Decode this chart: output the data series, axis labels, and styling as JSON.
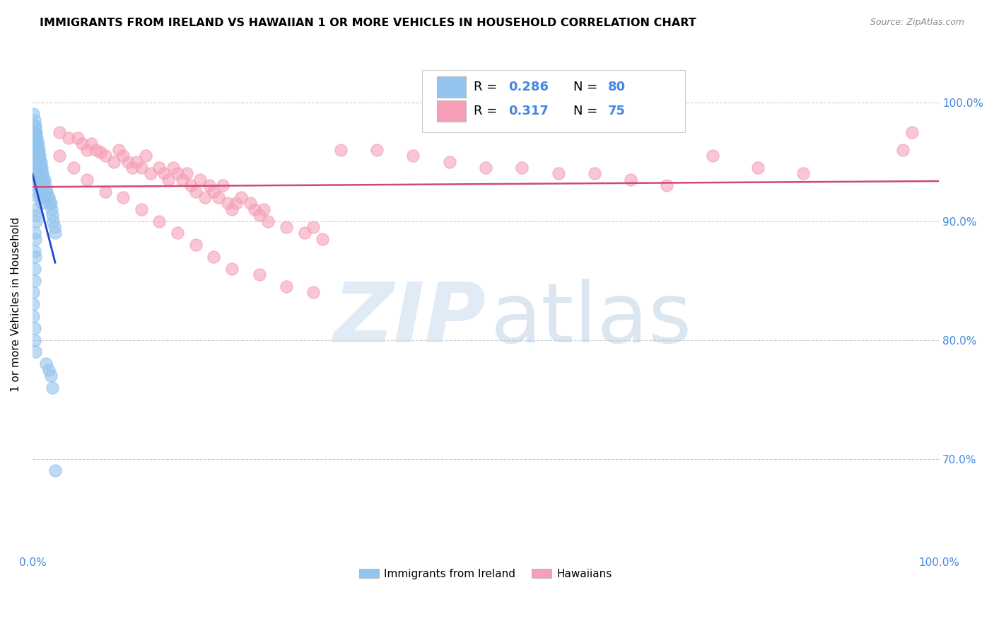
{
  "title": "IMMIGRANTS FROM IRELAND VS HAWAIIAN 1 OR MORE VEHICLES IN HOUSEHOLD CORRELATION CHART",
  "source": "Source: ZipAtlas.com",
  "ylabel": "1 or more Vehicles in Household",
  "legend_label1": "Immigrants from Ireland",
  "legend_label2": "Hawaiians",
  "R1": "0.286",
  "N1": "80",
  "R2": "0.317",
  "N2": "75",
  "blue_color": "#93C4EE",
  "pink_color": "#F5A0B8",
  "blue_line_color": "#2244CC",
  "pink_line_color": "#D04878",
  "axis_label_color": "#4488DD",
  "grid_color": "#CCCCCC",
  "blue_x": [
    0.001,
    0.002,
    0.002,
    0.002,
    0.003,
    0.003,
    0.003,
    0.003,
    0.003,
    0.004,
    0.004,
    0.004,
    0.004,
    0.005,
    0.005,
    0.005,
    0.005,
    0.006,
    0.006,
    0.006,
    0.007,
    0.007,
    0.007,
    0.008,
    0.008,
    0.008,
    0.009,
    0.009,
    0.01,
    0.01,
    0.011,
    0.012,
    0.012,
    0.013,
    0.014,
    0.015,
    0.016,
    0.017,
    0.018,
    0.019,
    0.02,
    0.021,
    0.022,
    0.023,
    0.024,
    0.025,
    0.002,
    0.003,
    0.004,
    0.005,
    0.006,
    0.007,
    0.008,
    0.009,
    0.01,
    0.002,
    0.003,
    0.004,
    0.005,
    0.006,
    0.002,
    0.003,
    0.004,
    0.002,
    0.003,
    0.002,
    0.003,
    0.002,
    0.002,
    0.001,
    0.001,
    0.001,
    0.002,
    0.002,
    0.003,
    0.015,
    0.018,
    0.02,
    0.022,
    0.025
  ],
  "blue_y": [
    0.99,
    0.985,
    0.98,
    0.975,
    0.98,
    0.975,
    0.97,
    0.965,
    0.96,
    0.975,
    0.97,
    0.965,
    0.96,
    0.97,
    0.965,
    0.96,
    0.955,
    0.965,
    0.96,
    0.955,
    0.96,
    0.955,
    0.95,
    0.955,
    0.95,
    0.945,
    0.95,
    0.945,
    0.945,
    0.94,
    0.94,
    0.935,
    0.93,
    0.935,
    0.93,
    0.925,
    0.925,
    0.92,
    0.92,
    0.915,
    0.915,
    0.91,
    0.905,
    0.9,
    0.895,
    0.89,
    0.955,
    0.95,
    0.945,
    0.94,
    0.935,
    0.93,
    0.925,
    0.92,
    0.915,
    0.94,
    0.935,
    0.93,
    0.925,
    0.92,
    0.91,
    0.905,
    0.9,
    0.89,
    0.885,
    0.875,
    0.87,
    0.86,
    0.85,
    0.84,
    0.83,
    0.82,
    0.81,
    0.8,
    0.79,
    0.78,
    0.775,
    0.77,
    0.76,
    0.69
  ],
  "pink_x": [
    0.03,
    0.04,
    0.05,
    0.055,
    0.06,
    0.065,
    0.07,
    0.075,
    0.08,
    0.09,
    0.095,
    0.1,
    0.105,
    0.11,
    0.115,
    0.12,
    0.125,
    0.13,
    0.14,
    0.145,
    0.15,
    0.155,
    0.16,
    0.165,
    0.17,
    0.175,
    0.18,
    0.185,
    0.19,
    0.195,
    0.2,
    0.205,
    0.21,
    0.215,
    0.22,
    0.225,
    0.23,
    0.24,
    0.245,
    0.25,
    0.255,
    0.26,
    0.28,
    0.3,
    0.31,
    0.32,
    0.03,
    0.045,
    0.06,
    0.08,
    0.1,
    0.12,
    0.14,
    0.16,
    0.18,
    0.2,
    0.22,
    0.25,
    0.28,
    0.31,
    0.34,
    0.38,
    0.42,
    0.46,
    0.5,
    0.54,
    0.58,
    0.62,
    0.66,
    0.7,
    0.75,
    0.8,
    0.85,
    0.96,
    0.97
  ],
  "pink_y": [
    0.975,
    0.97,
    0.97,
    0.965,
    0.96,
    0.965,
    0.96,
    0.958,
    0.955,
    0.95,
    0.96,
    0.955,
    0.95,
    0.945,
    0.95,
    0.945,
    0.955,
    0.94,
    0.945,
    0.94,
    0.935,
    0.945,
    0.94,
    0.935,
    0.94,
    0.93,
    0.925,
    0.935,
    0.92,
    0.93,
    0.925,
    0.92,
    0.93,
    0.915,
    0.91,
    0.915,
    0.92,
    0.915,
    0.91,
    0.905,
    0.91,
    0.9,
    0.895,
    0.89,
    0.895,
    0.885,
    0.955,
    0.945,
    0.935,
    0.925,
    0.92,
    0.91,
    0.9,
    0.89,
    0.88,
    0.87,
    0.86,
    0.855,
    0.845,
    0.84,
    0.96,
    0.96,
    0.955,
    0.95,
    0.945,
    0.945,
    0.94,
    0.94,
    0.935,
    0.93,
    0.955,
    0.945,
    0.94,
    0.96,
    0.975
  ],
  "xlim": [
    0.0,
    1.0
  ],
  "ylim": [
    0.62,
    1.04
  ],
  "yticks": [
    0.7,
    0.8,
    0.9,
    1.0
  ],
  "ytick_labels": [
    "70.0%",
    "80.0%",
    "90.0%",
    "100.0%"
  ],
  "xtick_left": "0.0%",
  "xtick_right": "100.0%"
}
